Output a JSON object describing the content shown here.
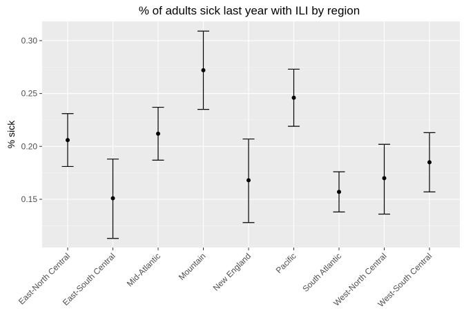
{
  "chart_data": {
    "type": "scatter",
    "title": "% of adults sick last year with ILI by region",
    "xlabel": "",
    "ylabel": "% sick",
    "categories": [
      "East-North Central",
      "East-South Central",
      "Mid-Atlantic",
      "Mountain",
      "New England",
      "Pacific",
      "South Atlantic",
      "West-North Central",
      "West-South Central"
    ],
    "points": [
      {
        "category": "East-North Central",
        "value": 0.206,
        "lower": 0.181,
        "upper": 0.231
      },
      {
        "category": "East-South Central",
        "value": 0.151,
        "lower": 0.113,
        "upper": 0.188
      },
      {
        "category": "Mid-Atlantic",
        "value": 0.212,
        "lower": 0.187,
        "upper": 0.237
      },
      {
        "category": "Mountain",
        "value": 0.272,
        "lower": 0.235,
        "upper": 0.309
      },
      {
        "category": "New England",
        "value": 0.168,
        "lower": 0.128,
        "upper": 0.207
      },
      {
        "category": "Pacific",
        "value": 0.246,
        "lower": 0.219,
        "upper": 0.273
      },
      {
        "category": "South Atlantic",
        "value": 0.157,
        "lower": 0.138,
        "upper": 0.176
      },
      {
        "category": "West-North Central",
        "value": 0.17,
        "lower": 0.136,
        "upper": 0.202
      },
      {
        "category": "West-South Central",
        "value": 0.185,
        "lower": 0.157,
        "upper": 0.213
      }
    ],
    "ylim": [
      0.1,
      0.32
    ],
    "yticks": [
      "0.15",
      "0.20",
      "0.25",
      "0.30"
    ],
    "ytick_values": [
      0.15,
      0.2,
      0.25,
      0.3
    ],
    "grid": true,
    "colors": {
      "panel": "#ebebeb",
      "grid_major": "#ffffff",
      "grid_minor": "#f5f5f5",
      "marks": "#000000",
      "tick_text": "#4d4d4d"
    }
  }
}
